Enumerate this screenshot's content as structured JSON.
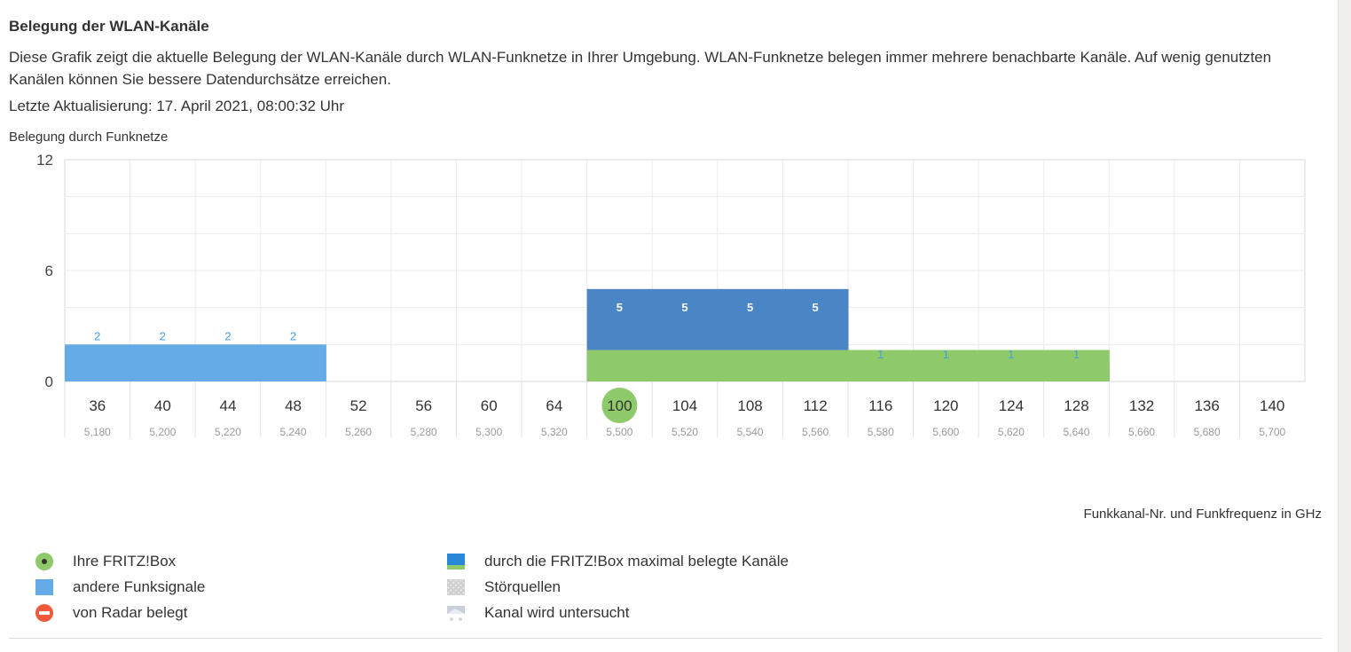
{
  "page": {
    "title": "Belegung der WLAN-Kanäle",
    "description": "Diese Grafik zeigt die aktuelle Belegung der WLAN-Kanäle durch WLAN-Funknetze in Ihrer Umgebung. WLAN-Funknetze belegen immer mehrere benachbarte Kanäle. Auf wenig genutzten Kanälen können Sie bessere Datendurchsätze erreichen.",
    "updated": "Letzte Aktualisierung: 17. April 2021, 08:00:32 Uhr"
  },
  "chart_data": {
    "type": "bar",
    "ylabel": "Belegung durch Funknetze",
    "xlabel": "Funkkanal-Nr. und Funkfrequenz in GHz",
    "ylim": [
      0,
      12
    ],
    "yticks": [
      0,
      6,
      12
    ],
    "grid": true,
    "categories": [
      "36",
      "40",
      "44",
      "48",
      "52",
      "56",
      "60",
      "64",
      "100",
      "104",
      "108",
      "112",
      "116",
      "120",
      "124",
      "128",
      "132",
      "136",
      "140"
    ],
    "frequencies": [
      "5,180",
      "5,200",
      "5,220",
      "5,240",
      "5,260",
      "5,280",
      "5,300",
      "5,320",
      "5,500",
      "5,520",
      "5,540",
      "5,560",
      "5,580",
      "5,600",
      "5,620",
      "5,640",
      "5,660",
      "5,680",
      "5,700"
    ],
    "own_channel": "100",
    "series": [
      {
        "name": "andere Funksignale",
        "color": "#64abe8",
        "values": [
          2,
          2,
          2,
          2,
          0,
          0,
          0,
          0,
          0,
          0,
          0,
          0,
          1,
          1,
          1,
          1,
          0,
          0,
          0
        ],
        "labels": [
          "2",
          "2",
          "2",
          "2",
          "",
          "",
          "",
          "",
          "",
          "",
          "",
          "",
          "1",
          "1",
          "1",
          "1",
          "",
          "",
          ""
        ]
      },
      {
        "name": "durch die FRITZ!Box maximal belegte Kanäle",
        "color": "#4a86c6",
        "values": [
          0,
          0,
          0,
          0,
          0,
          0,
          0,
          0,
          5,
          5,
          5,
          5,
          0,
          0,
          0,
          0,
          0,
          0,
          0
        ],
        "labels": [
          "",
          "",
          "",
          "",
          "",
          "",
          "",
          "",
          "5",
          "5",
          "5",
          "5",
          "",
          "",
          "",
          "",
          "",
          "",
          ""
        ]
      }
    ],
    "fritzbox_band": {
      "color": "#8fca6a",
      "from": "100",
      "to": "128",
      "value": 0.5
    }
  },
  "legend": {
    "items": [
      {
        "label": "Ihre FRITZ!Box",
        "icon": "fritzbox-dot-icon"
      },
      {
        "label": "andere Funksignale",
        "icon": "blue-square-icon"
      },
      {
        "label": "von Radar belegt",
        "icon": "radar-icon"
      },
      {
        "label": "durch die FRITZ!Box maximal belegte Kanäle",
        "icon": "fritzbox-max-icon"
      },
      {
        "label": "Störquellen",
        "icon": "interference-icon"
      },
      {
        "label": "Kanal wird untersucht",
        "icon": "scan-icon"
      }
    ]
  }
}
